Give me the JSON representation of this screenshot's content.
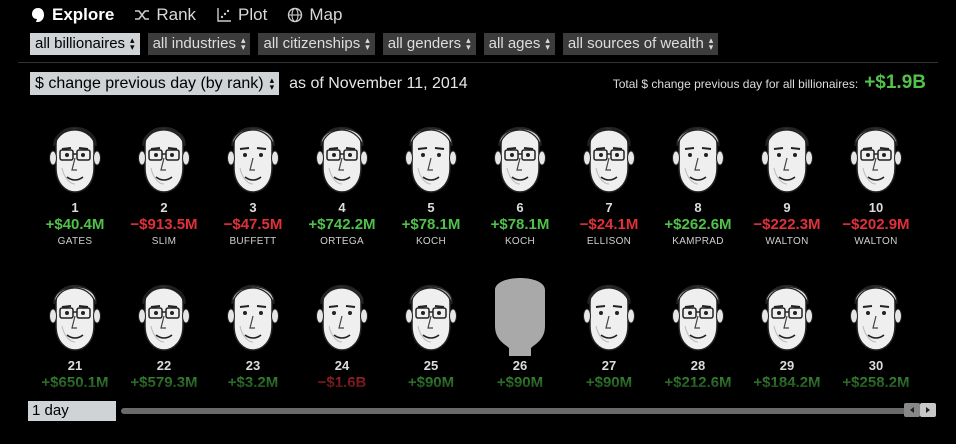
{
  "nav": {
    "items": [
      {
        "label": "Explore",
        "icon": "explore-icon",
        "active": true
      },
      {
        "label": "Rank",
        "icon": "rank-icon",
        "active": false
      },
      {
        "label": "Plot",
        "icon": "plot-icon",
        "active": false
      },
      {
        "label": "Map",
        "icon": "globe-icon",
        "active": false
      }
    ]
  },
  "filters": [
    {
      "label": "all billionaires",
      "active": true
    },
    {
      "label": "all industries",
      "active": false
    },
    {
      "label": "all citizenships",
      "active": false
    },
    {
      "label": "all genders",
      "active": false
    },
    {
      "label": "all ages",
      "active": false
    },
    {
      "label": "all sources of wealth",
      "active": false
    }
  ],
  "sort": {
    "label": "$ change previous day (by rank)",
    "as_of": "as of November 11, 2014"
  },
  "total": {
    "label": "Total $ change previous day for all billionaires:",
    "value": "+$1.9B"
  },
  "row1": [
    {
      "rank": "1",
      "change": "+$40.4M",
      "name": "GATES",
      "dir": "up"
    },
    {
      "rank": "2",
      "change": "−$913.5M",
      "name": "SLIM",
      "dir": "down"
    },
    {
      "rank": "3",
      "change": "−$47.5M",
      "name": "BUFFETT",
      "dir": "down"
    },
    {
      "rank": "4",
      "change": "+$742.2M",
      "name": "ORTEGA",
      "dir": "up"
    },
    {
      "rank": "5",
      "change": "+$78.1M",
      "name": "KOCH",
      "dir": "up"
    },
    {
      "rank": "6",
      "change": "+$78.1M",
      "name": "KOCH",
      "dir": "up"
    },
    {
      "rank": "7",
      "change": "−$24.1M",
      "name": "ELLISON",
      "dir": "down"
    },
    {
      "rank": "8",
      "change": "+$262.6M",
      "name": "KAMPRAD",
      "dir": "up"
    },
    {
      "rank": "9",
      "change": "−$222.3M",
      "name": "WALTON",
      "dir": "down"
    },
    {
      "rank": "10",
      "change": "−$202.9M",
      "name": "WALTON",
      "dir": "down"
    }
  ],
  "row2": [
    {
      "rank": "21",
      "change": "+$650.1M",
      "dir": "up"
    },
    {
      "rank": "22",
      "change": "+$579.3M",
      "dir": "up"
    },
    {
      "rank": "23",
      "change": "+$3.2M",
      "dir": "up"
    },
    {
      "rank": "24",
      "change": "−$1.6B",
      "dir": "down"
    },
    {
      "rank": "25",
      "change": "+$90M",
      "dir": "up"
    },
    {
      "rank": "26",
      "change": "+$90M",
      "dir": "up",
      "placeholder": true
    },
    {
      "rank": "27",
      "change": "+$90M",
      "dir": "up"
    },
    {
      "rank": "28",
      "change": "+$212.6M",
      "dir": "up"
    },
    {
      "rank": "29",
      "change": "+$184.2M",
      "dir": "up"
    },
    {
      "rank": "30",
      "change": "+$258.2M",
      "dir": "up"
    }
  ],
  "timeline": {
    "period": "1 day"
  },
  "colors": {
    "up": "#4fc14a",
    "down": "#e0303a",
    "select_bg": "#cfd3d6",
    "filter_bg": "#3c3c3c"
  }
}
